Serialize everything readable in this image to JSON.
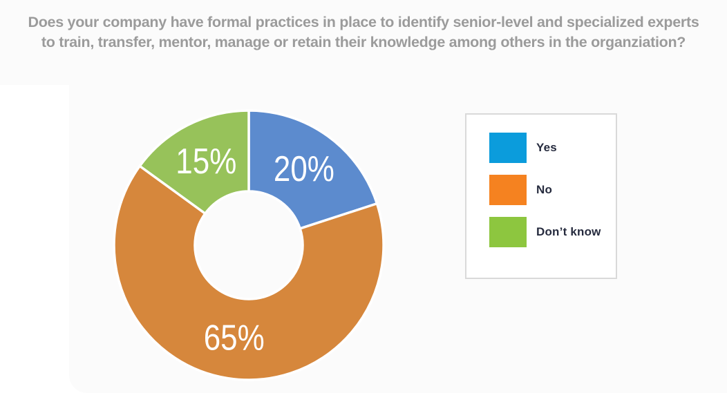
{
  "title": {
    "line1": "Does your company have formal practices in place to identify senior-level and specialized experts",
    "line2": "to train, transfer, mentor, manage or retain their knowledge among others in the organziation?"
  },
  "chart_data": {
    "type": "pie",
    "variant": "donut",
    "title": "Does your company have formal practices in place to identify senior-level and specialized experts to train, transfer, mentor, manage or retain their knowledge among others in the organziation?",
    "categories": [
      "Yes",
      "No",
      "Don’t know"
    ],
    "values": [
      20,
      65,
      15
    ],
    "unit": "%",
    "slice_labels": [
      "20%",
      "65%",
      "15%"
    ],
    "slice_colors": [
      "#5C8BCE",
      "#D6873C",
      "#97C25A"
    ],
    "legend_colors": [
      "#0B9CDC",
      "#F58220",
      "#8DC63F"
    ],
    "legend_position": "right",
    "start_angle_deg": 0,
    "clockwise": true,
    "hole_ratio": 0.4,
    "value_label_color": "#FFFFFF"
  },
  "colors": {
    "title_text": "#9B9B9B",
    "panel_background": "#FBFBFB",
    "legend_border": "#D9D9D9",
    "legend_background": "#FFFFFF",
    "legend_text": "#262B3E",
    "slice_divider": "#FFFFFF"
  }
}
